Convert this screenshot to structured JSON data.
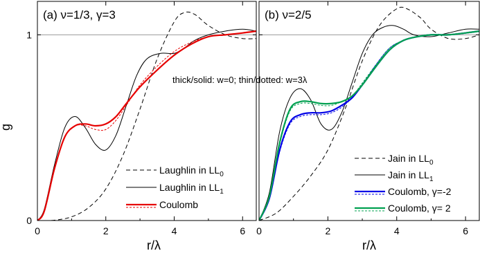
{
  "figure": {
    "ylabel": "g",
    "annotation": "thick/solid: w=0; thin/dotted: w=3λ"
  },
  "chart_data": [
    {
      "type": "line",
      "title": "(a) ν=1/3, γ=3",
      "xlabel": "r/λ",
      "ylabel": "g",
      "xlim": [
        0,
        6.4
      ],
      "ylim": [
        0,
        1.18
      ],
      "xticks": [
        "0",
        "2",
        "4",
        "6"
      ],
      "yticks": [
        "0",
        "1"
      ],
      "reference_line_y": 1,
      "series": [
        {
          "name": "Laughlin in LL",
          "name_sub": "0",
          "color": "#000000",
          "style": "dashed",
          "width": 1,
          "x": [
            0,
            0.5,
            1,
            1.5,
            2,
            2.5,
            3,
            3.5,
            4,
            4.3,
            4.6,
            5,
            5.5,
            6,
            6.4
          ],
          "y": [
            0,
            0.002,
            0.02,
            0.07,
            0.17,
            0.35,
            0.6,
            0.87,
            1.07,
            1.12,
            1.11,
            1.05,
            1.0,
            0.98,
            0.98
          ]
        },
        {
          "name": "Laughlin in LL",
          "name_sub": "1",
          "color": "#000000",
          "style": "solid",
          "width": 1,
          "x": [
            0,
            0.2,
            0.5,
            0.8,
            1.1,
            1.4,
            1.7,
            2.0,
            2.3,
            2.6,
            2.9,
            3.2,
            3.6,
            4.0,
            4.3,
            4.6,
            5.0,
            5.5,
            6.0,
            6.4
          ],
          "y": [
            0,
            0.06,
            0.3,
            0.5,
            0.56,
            0.5,
            0.41,
            0.38,
            0.46,
            0.62,
            0.78,
            0.87,
            0.9,
            0.9,
            0.93,
            0.97,
            1.0,
            1.02,
            1.03,
            1.02
          ]
        },
        {
          "name": "Coulomb",
          "color": "#e60000",
          "style": "solid",
          "width": 2.2,
          "x": [
            0,
            0.2,
            0.5,
            0.8,
            1.1,
            1.4,
            1.7,
            2.0,
            2.3,
            2.6,
            3.0,
            3.5,
            4.0,
            4.5,
            5.0,
            5.5,
            6.0,
            6.4
          ],
          "y": [
            0,
            0.05,
            0.28,
            0.45,
            0.51,
            0.52,
            0.51,
            0.52,
            0.56,
            0.63,
            0.72,
            0.81,
            0.89,
            0.95,
            0.99,
            1.0,
            1.01,
            1.02
          ]
        },
        {
          "name": "",
          "color": "#e60000",
          "style": "dotted",
          "width": 1,
          "x": [
            0,
            0.2,
            0.5,
            0.8,
            1.1,
            1.4,
            1.7,
            2.0,
            2.3,
            2.6,
            3.0,
            3.5,
            4.0,
            4.5,
            5.0,
            5.5,
            6.0,
            6.4
          ],
          "y": [
            0,
            0.05,
            0.28,
            0.45,
            0.51,
            0.51,
            0.49,
            0.49,
            0.54,
            0.62,
            0.73,
            0.83,
            0.91,
            0.96,
            0.99,
            1.0,
            1.01,
            1.02
          ]
        }
      ],
      "legend_placement": "bottom-right"
    },
    {
      "type": "line",
      "title": "(b) ν=2/5",
      "xlabel": "r/λ",
      "ylabel": "",
      "xlim": [
        0,
        6.4
      ],
      "ylim": [
        0,
        1.18
      ],
      "xticks": [
        "0",
        "2",
        "4",
        "6"
      ],
      "yticks": [],
      "reference_line_y": 1,
      "series": [
        {
          "name": "Jain in LL",
          "name_sub": "0",
          "color": "#000000",
          "style": "dashed",
          "width": 1,
          "x": [
            0,
            0.5,
            1,
            1.5,
            2,
            2.5,
            3,
            3.5,
            4,
            4.3,
            4.7,
            5.0,
            5.5,
            6.0,
            6.4
          ],
          "y": [
            0,
            0.04,
            0.13,
            0.24,
            0.38,
            0.6,
            0.86,
            1.05,
            1.14,
            1.14,
            1.09,
            1.03,
            0.98,
            0.98,
            1.0
          ]
        },
        {
          "name": "Jain in LL",
          "name_sub": "1",
          "color": "#000000",
          "style": "solid",
          "width": 1,
          "x": [
            0,
            0.3,
            0.6,
            0.9,
            1.2,
            1.5,
            1.8,
            2.1,
            2.4,
            2.7,
            3.0,
            3.3,
            3.6,
            3.9,
            4.2,
            4.5,
            5.0,
            5.5,
            6.0,
            6.4
          ],
          "y": [
            0,
            0.15,
            0.48,
            0.66,
            0.71,
            0.65,
            0.52,
            0.49,
            0.58,
            0.74,
            0.9,
            1.0,
            1.04,
            1.05,
            1.03,
            1.0,
            0.99,
            1.01,
            1.03,
            1.03
          ]
        },
        {
          "name": "Coulomb, γ=-2",
          "color": "#0000e6",
          "style": "solid",
          "width": 2.2,
          "x": [
            0,
            0.3,
            0.6,
            0.9,
            1.2,
            1.5,
            1.8,
            2.1,
            2.4,
            2.7,
            3.0,
            3.4,
            3.8,
            4.2,
            4.6,
            5.0,
            5.5,
            6.0,
            6.4
          ],
          "y": [
            0,
            0.12,
            0.38,
            0.53,
            0.57,
            0.58,
            0.58,
            0.59,
            0.62,
            0.66,
            0.73,
            0.83,
            0.92,
            0.97,
            0.99,
            1.0,
            1.0,
            1.01,
            1.02
          ]
        },
        {
          "name": "",
          "color": "#0000e6",
          "style": "dotted",
          "width": 1,
          "x": [
            0,
            0.3,
            0.6,
            0.9,
            1.2,
            1.5,
            1.8,
            2.1,
            2.4,
            2.7,
            3.0,
            3.4,
            3.8,
            4.2,
            4.6,
            5.0,
            5.5,
            6.0,
            6.4
          ],
          "y": [
            0,
            0.12,
            0.37,
            0.52,
            0.56,
            0.57,
            0.57,
            0.58,
            0.61,
            0.66,
            0.73,
            0.84,
            0.93,
            0.97,
            0.99,
            1.0,
            1.0,
            1.01,
            1.02
          ]
        },
        {
          "name": "Coulomb, γ= 2",
          "color": "#00a050",
          "style": "solid",
          "width": 2.2,
          "x": [
            0,
            0.3,
            0.6,
            0.9,
            1.2,
            1.5,
            1.8,
            2.1,
            2.4,
            2.7,
            3.0,
            3.4,
            3.8,
            4.2,
            4.6,
            5.0,
            5.5,
            6.0,
            6.4
          ],
          "y": [
            0,
            0.13,
            0.42,
            0.6,
            0.64,
            0.64,
            0.63,
            0.63,
            0.64,
            0.67,
            0.73,
            0.83,
            0.92,
            0.97,
            0.99,
            1.0,
            1.0,
            1.01,
            1.02
          ]
        },
        {
          "name": "",
          "color": "#00a050",
          "style": "dotted",
          "width": 1,
          "x": [
            0,
            0.3,
            0.6,
            0.9,
            1.2,
            1.5,
            1.8,
            2.1,
            2.4,
            2.7,
            3.0,
            3.4,
            3.8,
            4.2,
            4.6,
            5.0,
            5.5,
            6.0,
            6.4
          ],
          "y": [
            0,
            0.13,
            0.41,
            0.59,
            0.63,
            0.63,
            0.62,
            0.62,
            0.64,
            0.67,
            0.74,
            0.84,
            0.93,
            0.97,
            0.99,
            1.0,
            1.0,
            1.01,
            1.02
          ]
        }
      ],
      "legend_placement": "bottom-right"
    }
  ]
}
